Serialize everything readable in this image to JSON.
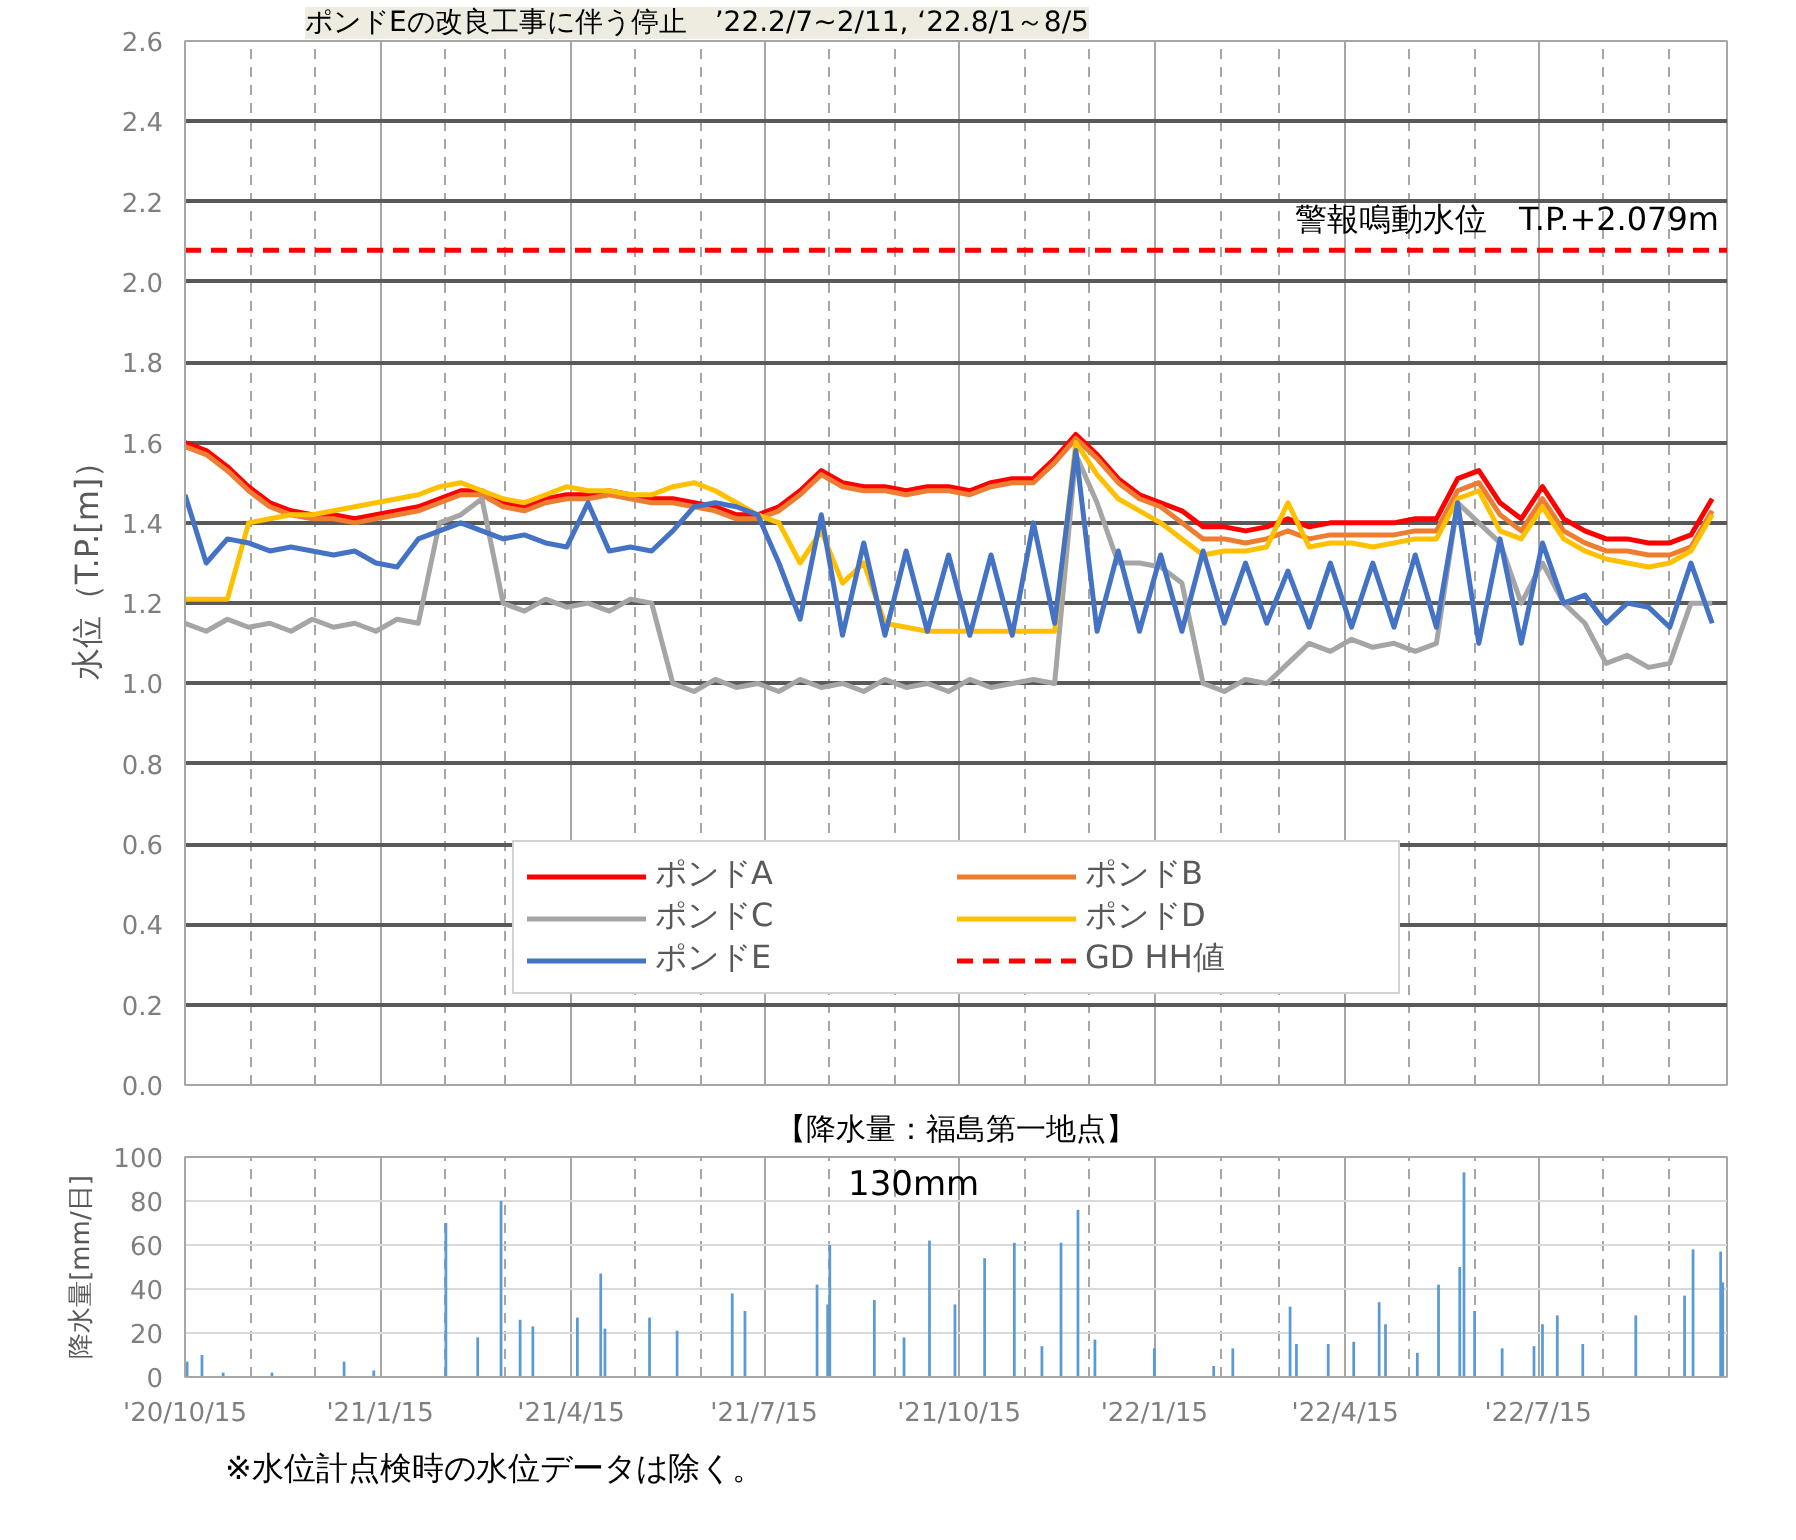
{
  "chart_data": [
    {
      "type": "line",
      "ylabel": "水位（T.P.[m]）",
      "annotations": [
        "ポンドEの改良工事に伴う停止　’22.2/7~2/11, ‘22.8/1～8/5",
        {
          "text": "警報鳴動水位　T.P.+2.079m",
          "x": "2022-10-12",
          "y": 2.079
        }
      ],
      "x": [
        "2020-10-15",
        "2020-10-25",
        "2020-11-04",
        "2020-11-14",
        "2020-11-24",
        "2020-12-04",
        "2020-12-14",
        "2020-12-24",
        "2021-01-03",
        "2021-01-13",
        "2021-01-23",
        "2021-02-02",
        "2021-02-12",
        "2021-02-22",
        "2021-03-04",
        "2021-03-14",
        "2021-03-24",
        "2021-04-03",
        "2021-04-13",
        "2021-04-23",
        "2021-05-03",
        "2021-05-13",
        "2021-05-23",
        "2021-06-02",
        "2021-06-12",
        "2021-06-22",
        "2021-07-02",
        "2021-07-12",
        "2021-07-22",
        "2021-08-01",
        "2021-08-11",
        "2021-08-21",
        "2021-08-31",
        "2021-09-10",
        "2021-09-20",
        "2021-09-30",
        "2021-10-10",
        "2021-10-20",
        "2021-10-30",
        "2021-11-09",
        "2021-11-19",
        "2021-11-29",
        "2021-12-09",
        "2021-12-19",
        "2021-12-29",
        "2022-01-08",
        "2022-01-18",
        "2022-01-28",
        "2022-02-07",
        "2022-02-17",
        "2022-02-27",
        "2022-03-09",
        "2022-03-19",
        "2022-03-29",
        "2022-04-08",
        "2022-04-18",
        "2022-04-28",
        "2022-05-08",
        "2022-05-18",
        "2022-05-28",
        "2022-06-07",
        "2022-06-17",
        "2022-06-27",
        "2022-07-07",
        "2022-07-17",
        "2022-07-27",
        "2022-08-06",
        "2022-08-16",
        "2022-08-26",
        "2022-09-05",
        "2022-09-15",
        "2022-09-25",
        "2022-10-05"
      ],
      "series": [
        {
          "name": "ポンドA",
          "color": "#ff0000",
          "values": [
            1.6,
            1.58,
            1.54,
            1.49,
            1.45,
            1.43,
            1.42,
            1.42,
            1.41,
            1.42,
            1.43,
            1.44,
            1.46,
            1.48,
            1.48,
            1.45,
            1.44,
            1.46,
            1.47,
            1.47,
            1.48,
            1.47,
            1.46,
            1.46,
            1.45,
            1.44,
            1.42,
            1.42,
            1.44,
            1.48,
            1.53,
            1.5,
            1.49,
            1.49,
            1.48,
            1.49,
            1.49,
            1.48,
            1.5,
            1.51,
            1.51,
            1.56,
            1.62,
            1.57,
            1.51,
            1.47,
            1.45,
            1.43,
            1.39,
            1.39,
            1.38,
            1.39,
            1.41,
            1.39,
            1.4,
            1.4,
            1.4,
            1.4,
            1.41,
            1.41,
            1.51,
            1.53,
            1.45,
            1.41,
            1.49,
            1.41,
            1.38,
            1.36,
            1.36,
            1.35,
            1.35,
            1.37,
            1.46
          ]
        },
        {
          "name": "ポンドB",
          "color": "#ed7d31",
          "values": [
            1.59,
            1.57,
            1.53,
            1.48,
            1.44,
            1.42,
            1.41,
            1.41,
            1.4,
            1.41,
            1.42,
            1.43,
            1.45,
            1.47,
            1.47,
            1.44,
            1.43,
            1.45,
            1.46,
            1.46,
            1.47,
            1.46,
            1.45,
            1.45,
            1.44,
            1.43,
            1.41,
            1.41,
            1.43,
            1.47,
            1.52,
            1.49,
            1.48,
            1.48,
            1.47,
            1.48,
            1.48,
            1.47,
            1.49,
            1.5,
            1.5,
            1.55,
            1.61,
            1.56,
            1.5,
            1.46,
            1.44,
            1.4,
            1.36,
            1.36,
            1.35,
            1.36,
            1.38,
            1.36,
            1.37,
            1.37,
            1.37,
            1.37,
            1.38,
            1.38,
            1.48,
            1.5,
            1.42,
            1.38,
            1.46,
            1.38,
            1.35,
            1.33,
            1.33,
            1.32,
            1.32,
            1.34,
            1.43
          ]
        },
        {
          "name": "ポンドC",
          "color": "#a5a5a5",
          "values": [
            1.15,
            1.13,
            1.16,
            1.14,
            1.15,
            1.13,
            1.16,
            1.14,
            1.15,
            1.13,
            1.16,
            1.15,
            1.4,
            1.42,
            1.46,
            1.2,
            1.18,
            1.21,
            1.19,
            1.2,
            1.18,
            1.21,
            1.2,
            1.0,
            0.98,
            1.01,
            0.99,
            1.0,
            0.98,
            1.01,
            0.99,
            1.0,
            0.98,
            1.01,
            0.99,
            1.0,
            0.98,
            1.01,
            0.99,
            1.0,
            1.01,
            1.0,
            1.57,
            1.45,
            1.3,
            1.3,
            1.29,
            1.25,
            1.0,
            0.98,
            1.01,
            1.0,
            1.05,
            1.1,
            1.08,
            1.11,
            1.09,
            1.1,
            1.08,
            1.1,
            1.45,
            1.4,
            1.35,
            1.2,
            1.3,
            1.2,
            1.15,
            1.05,
            1.07,
            1.04,
            1.05,
            1.2,
            1.2
          ]
        },
        {
          "name": "ポンドD",
          "color": "#ffc000",
          "values": [
            1.21,
            1.21,
            1.21,
            1.4,
            1.41,
            1.42,
            1.42,
            1.43,
            1.44,
            1.45,
            1.46,
            1.47,
            1.49,
            1.5,
            1.48,
            1.46,
            1.45,
            1.47,
            1.49,
            1.48,
            1.48,
            1.47,
            1.47,
            1.49,
            1.5,
            1.48,
            1.45,
            1.42,
            1.4,
            1.3,
            1.38,
            1.25,
            1.3,
            1.15,
            1.14,
            1.13,
            1.13,
            1.13,
            1.13,
            1.13,
            1.13,
            1.13,
            1.6,
            1.52,
            1.46,
            1.43,
            1.4,
            1.36,
            1.32,
            1.33,
            1.33,
            1.34,
            1.45,
            1.34,
            1.35,
            1.35,
            1.34,
            1.35,
            1.36,
            1.36,
            1.46,
            1.48,
            1.38,
            1.36,
            1.44,
            1.36,
            1.33,
            1.31,
            1.3,
            1.29,
            1.3,
            1.33,
            1.42
          ]
        },
        {
          "name": "ポンドE",
          "color": "#4472c4",
          "values": [
            1.47,
            1.3,
            1.36,
            1.35,
            1.33,
            1.34,
            1.33,
            1.32,
            1.33,
            1.3,
            1.29,
            1.36,
            1.38,
            1.4,
            1.38,
            1.36,
            1.37,
            1.35,
            1.34,
            1.45,
            1.33,
            1.34,
            1.33,
            1.38,
            1.44,
            1.45,
            1.44,
            1.42,
            1.3,
            1.16,
            1.42,
            1.12,
            1.35,
            1.12,
            1.33,
            1.13,
            1.32,
            1.12,
            1.32,
            1.12,
            1.4,
            1.15,
            1.58,
            1.13,
            1.33,
            1.13,
            1.32,
            1.13,
            1.33,
            1.15,
            1.3,
            1.15,
            1.28,
            1.14,
            1.3,
            1.14,
            1.3,
            1.14,
            1.32,
            1.14,
            1.45,
            1.1,
            1.36,
            1.1,
            1.35,
            1.2,
            1.22,
            1.15,
            1.2,
            1.19,
            1.14,
            1.3,
            1.15
          ]
        },
        {
          "name": "GD HH値",
          "color": "#ff0000",
          "line_style": "dashed",
          "x": [
            "2020-10-15",
            "2022-10-12"
          ],
          "values": [
            2.079,
            2.079
          ]
        }
      ],
      "xlim": [
        "2020-10-15",
        "2022-10-12"
      ],
      "xticks": [
        {
          "value": "2020-10-15",
          "label": null
        },
        {
          "value": "2020-11-15",
          "label": null
        },
        {
          "value": "2020-12-15",
          "label": null
        },
        {
          "value": "2021-01-15",
          "label": null
        },
        {
          "value": "2021-02-15",
          "label": null
        },
        {
          "value": "2021-03-15",
          "label": null
        },
        {
          "value": "2021-04-15",
          "label": null
        },
        {
          "value": "2021-05-15",
          "label": null
        },
        {
          "value": "2021-06-15",
          "label": null
        },
        {
          "value": "2021-07-15",
          "label": null
        },
        {
          "value": "2021-08-15",
          "label": null
        },
        {
          "value": "2021-09-15",
          "label": null
        },
        {
          "value": "2021-10-15",
          "label": null
        },
        {
          "value": "2021-11-15",
          "label": null
        },
        {
          "value": "2021-12-15",
          "label": null
        },
        {
          "value": "2022-01-15",
          "label": null
        },
        {
          "value": "2022-02-15",
          "label": null
        },
        {
          "value": "2022-03-15",
          "label": null
        },
        {
          "value": "2022-04-15",
          "label": null
        },
        {
          "value": "2022-05-15",
          "label": null
        },
        {
          "value": "2022-06-15",
          "label": null
        },
        {
          "value": "2022-07-15",
          "label": null
        },
        {
          "value": "2022-08-15",
          "label": null
        },
        {
          "value": "2022-09-15",
          "label": null
        }
      ],
      "ylim": [
        0,
        2.6
      ],
      "yticks": [
        {
          "value": 0,
          "label": "0.0"
        },
        {
          "value": 0.2,
          "label": "0.2"
        },
        {
          "value": 0.4,
          "label": "0.4"
        },
        {
          "value": 0.6,
          "label": "0.6"
        },
        {
          "value": 0.8,
          "label": "0.8"
        },
        {
          "value": 1.0,
          "label": "1.0"
        },
        {
          "value": 1.2,
          "label": "1.2"
        },
        {
          "value": 1.4,
          "label": "1.4"
        },
        {
          "value": 1.6,
          "label": "1.6"
        },
        {
          "value": 1.8,
          "label": "1.8"
        },
        {
          "value": 2.0,
          "label": "2.0"
        },
        {
          "value": 2.2,
          "label": "2.2"
        },
        {
          "value": 2.4,
          "label": "2.4"
        },
        {
          "value": 2.6,
          "label": "2.6"
        }
      ],
      "tick_labels": "y",
      "grid": true,
      "legend": "bottom",
      "marker": "none"
    },
    {
      "type": "bar",
      "title": "【降水量：福島第一地点】",
      "ylabel": "降水量[mm/日]",
      "color": "#5b9bd5",
      "annotations": [
        "130mm",
        "※水位計点検時の水位データは除く。"
      ],
      "x": [
        "2020-10-16",
        "2020-10-23",
        "2020-11-02",
        "2020-11-25",
        "2020-12-29",
        "2021-01-12",
        "2021-02-15",
        "2021-03-02",
        "2021-03-13",
        "2021-03-22",
        "2021-03-28",
        "2021-04-18",
        "2021-04-29",
        "2021-05-01",
        "2021-05-22",
        "2021-06-04",
        "2021-06-30",
        "2021-07-06",
        "2021-07-27",
        "2021-08-09",
        "2021-08-14",
        "2021-08-15",
        "2021-09-05",
        "2021-09-19",
        "2021-10-01",
        "2021-10-13",
        "2021-10-27",
        "2021-11-10",
        "2021-11-23",
        "2021-12-02",
        "2021-12-10",
        "2021-12-18",
        "2022-01-15",
        "2022-02-12",
        "2022-02-21",
        "2022-03-20",
        "2022-03-23",
        "2022-04-07",
        "2022-04-19",
        "2022-05-01",
        "2022-05-04",
        "2022-05-19",
        "2022-05-29",
        "2022-06-08",
        "2022-06-10",
        "2022-06-15",
        "2022-06-28",
        "2022-07-13",
        "2022-07-17",
        "2022-07-24",
        "2022-08-05",
        "2022-08-30",
        "2022-09-22",
        "2022-09-26",
        "2022-10-09",
        "2022-10-10"
      ],
      "values": [
        7,
        10,
        2,
        2,
        7,
        3,
        70,
        18,
        80,
        26,
        23,
        27,
        47,
        22,
        27,
        21,
        38,
        30,
        null,
        42,
        33,
        60,
        35,
        18,
        62,
        33,
        54,
        61,
        14,
        61,
        76,
        17,
        13,
        5,
        13,
        32,
        15,
        15,
        16,
        34,
        24,
        11,
        42,
        50,
        93,
        30,
        13,
        14,
        24,
        28,
        15,
        28,
        37,
        58,
        57,
        43
      ],
      "xlim": [
        "2020-10-15",
        "2022-10-12"
      ],
      "xticks": [
        {
          "value": "2020-10-15",
          "label": "'20/10/15"
        },
        {
          "value": "2020-11-15",
          "label": null
        },
        {
          "value": "2020-12-15",
          "label": null
        },
        {
          "value": "2021-01-15",
          "label": "'21/1/15"
        },
        {
          "value": "2021-02-15",
          "label": null
        },
        {
          "value": "2021-03-15",
          "label": null
        },
        {
          "value": "2021-04-15",
          "label": "'21/4/15"
        },
        {
          "value": "2021-05-15",
          "label": null
        },
        {
          "value": "2021-06-15",
          "label": null
        },
        {
          "value": "2021-07-15",
          "label": "'21/7/15"
        },
        {
          "value": "2021-08-15",
          "label": null
        },
        {
          "value": "2021-09-15",
          "label": null
        },
        {
          "value": "2021-10-15",
          "label": "'21/10/15"
        },
        {
          "value": "2021-11-15",
          "label": null
        },
        {
          "value": "2021-12-15",
          "label": null
        },
        {
          "value": "2022-01-15",
          "label": "'22/1/15"
        },
        {
          "value": "2022-02-15",
          "label": null
        },
        {
          "value": "2022-03-15",
          "label": null
        },
        {
          "value": "2022-04-15",
          "label": "'22/4/15"
        },
        {
          "value": "2022-05-15",
          "label": null
        },
        {
          "value": "2022-06-15",
          "label": null
        },
        {
          "value": "2022-07-15",
          "label": "'22/7/15"
        },
        {
          "value": "2022-08-15",
          "label": null
        },
        {
          "value": "2022-09-15",
          "label": null
        }
      ],
      "ylim": [
        0,
        100
      ],
      "yticks": [
        0,
        20,
        40,
        60,
        80,
        100
      ],
      "grid": true
    }
  ]
}
